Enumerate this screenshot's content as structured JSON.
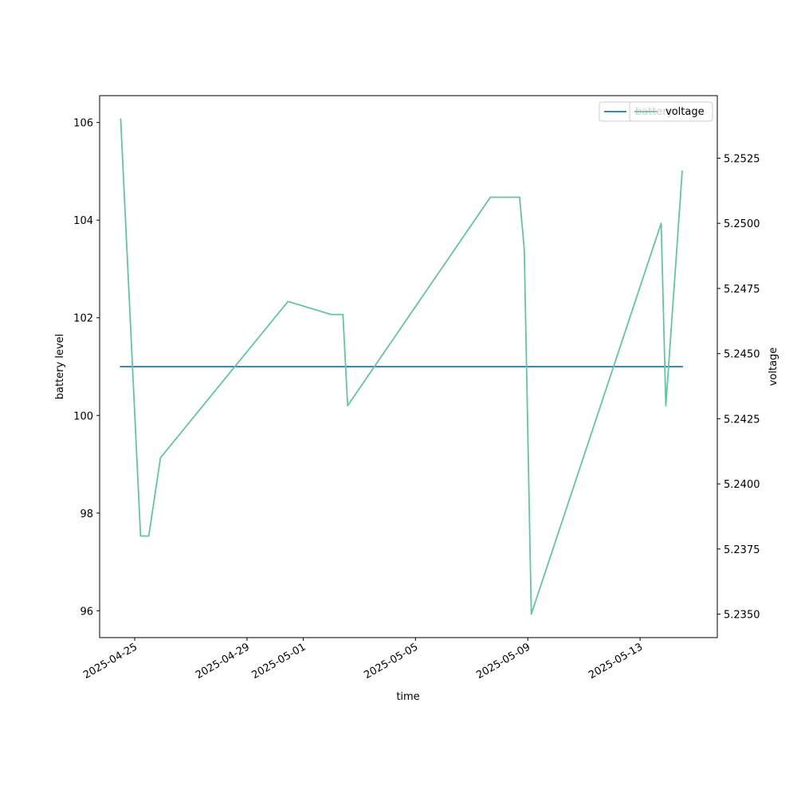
{
  "chart_data": {
    "type": "line",
    "xlabel": "time",
    "ylabel_left": "battery level",
    "ylabel_right": "voltage",
    "x_ticks": [
      "2025-04-25",
      "2025-04-29",
      "2025-05-01",
      "2025-05-05",
      "2025-05-09",
      "2025-05-13"
    ],
    "x_range": [
      "2025-04-23T18:00",
      "2025-05-15T18:00"
    ],
    "y_left_ticks": [
      96,
      98,
      100,
      102,
      104,
      106
    ],
    "y_left_range": [
      95.45,
      106.55
    ],
    "y_right_ticks": [
      "5.2350",
      "5.2375",
      "5.2400",
      "5.2425",
      "5.2450",
      "5.2475",
      "5.2500",
      "5.2525"
    ],
    "y_right_range": [
      5.2341,
      5.2549
    ],
    "grid": false,
    "series": [
      {
        "name": "battery",
        "axis": "left",
        "color": "#1f77b4",
        "points": [
          {
            "x": "2025-04-24T12:00",
            "y": 101
          },
          {
            "x": "2025-05-14T12:00",
            "y": 101
          }
        ]
      },
      {
        "name": "voltage",
        "axis": "right",
        "color": "#66c2a5",
        "points": [
          {
            "x": "2025-04-24T12:00",
            "y": 5.254
          },
          {
            "x": "2025-04-25T05:00",
            "y": 5.238
          },
          {
            "x": "2025-04-25T12:00",
            "y": 5.238
          },
          {
            "x": "2025-04-25T22:00",
            "y": 5.241
          },
          {
            "x": "2025-04-30T11:00",
            "y": 5.247
          },
          {
            "x": "2025-05-02T00:00",
            "y": 5.2465
          },
          {
            "x": "2025-05-02T10:00",
            "y": 5.2465
          },
          {
            "x": "2025-05-02T14:00",
            "y": 5.243
          },
          {
            "x": "2025-05-07T16:00",
            "y": 5.251
          },
          {
            "x": "2025-05-08T17:00",
            "y": 5.251
          },
          {
            "x": "2025-05-08T21:00",
            "y": 5.249
          },
          {
            "x": "2025-05-09T03:00",
            "y": 5.235
          },
          {
            "x": "2025-05-13T18:00",
            "y": 5.25
          },
          {
            "x": "2025-05-13T22:00",
            "y": 5.243
          },
          {
            "x": "2025-05-14T12:00",
            "y": 5.252
          }
        ]
      }
    ],
    "legends": [
      {
        "placement": "top-right",
        "label": "battery",
        "color": "#1f77b4"
      },
      {
        "placement": "top-right",
        "label": "voltage",
        "color": "#66c2a5"
      }
    ]
  }
}
